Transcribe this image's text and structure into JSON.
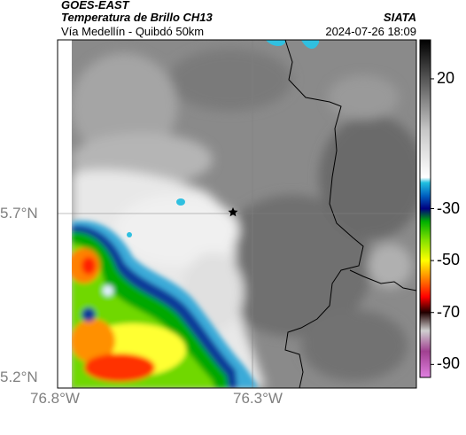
{
  "header": {
    "title": "GOES-EAST",
    "subtitle": "Temperatura de Brillo CH13",
    "agency": "SIATA",
    "route": "Vía Medellín - Quibdó 50km",
    "timestamp": "2024-07-26 18:09"
  },
  "map": {
    "lat_ticks": [
      "5.7°N",
      "5.2°N"
    ],
    "lon_ticks": [
      "76.8°W",
      "76.3°W"
    ],
    "marker_icon": "star-icon"
  },
  "colorbar": {
    "labels": [
      "20",
      "-30",
      "-50",
      "-70",
      "-90"
    ],
    "range": [
      -95,
      35
    ],
    "stops": [
      {
        "t": 35,
        "color": "#000000"
      },
      {
        "t": 0,
        "color": "#c8c8c8"
      },
      {
        "t": -18,
        "color": "#ffffff"
      },
      {
        "t": -20,
        "color": "#20c0e0"
      },
      {
        "t": -25,
        "color": "#0060c0"
      },
      {
        "t": -30,
        "color": "#000080"
      },
      {
        "t": -35,
        "color": "#00b000"
      },
      {
        "t": -42,
        "color": "#80e000"
      },
      {
        "t": -50,
        "color": "#ffff00"
      },
      {
        "t": -57,
        "color": "#ff8000"
      },
      {
        "t": -64,
        "color": "#ff0000"
      },
      {
        "t": -70,
        "color": "#200000"
      },
      {
        "t": -77,
        "color": "#d0d0d0"
      },
      {
        "t": -85,
        "color": "#a04090"
      },
      {
        "t": -95,
        "color": "#e080e0"
      }
    ]
  }
}
